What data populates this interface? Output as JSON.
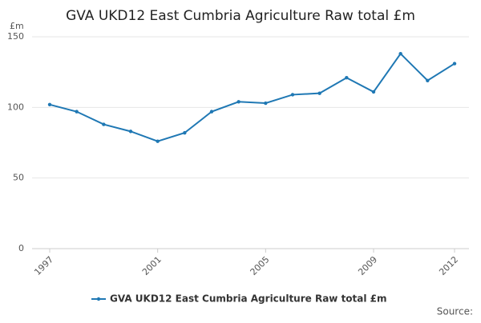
{
  "chart_data": {
    "type": "line",
    "title": "GVA UKD12 East Cumbria Agriculture Raw total £m",
    "y_axis_label": "£m",
    "x": [
      1997,
      1998,
      1999,
      2000,
      2001,
      2002,
      2003,
      2004,
      2005,
      2006,
      2007,
      2008,
      2009,
      2010,
      2011,
      2012
    ],
    "series": [
      {
        "name": "GVA UKD12 East Cumbria Agriculture Raw total £m",
        "color": "#1f78b4",
        "values": [
          102,
          97,
          88,
          83,
          76,
          82,
          97,
          104,
          103,
          109,
          110,
          121,
          111,
          138,
          119,
          131
        ]
      }
    ],
    "xlim": [
      1997,
      2012
    ],
    "xticks": [
      1997,
      2001,
      2005,
      2009,
      2012
    ],
    "ylim": [
      0,
      150
    ],
    "yticks": [
      0,
      50,
      100,
      150
    ],
    "grid": true,
    "source": "Source:"
  }
}
